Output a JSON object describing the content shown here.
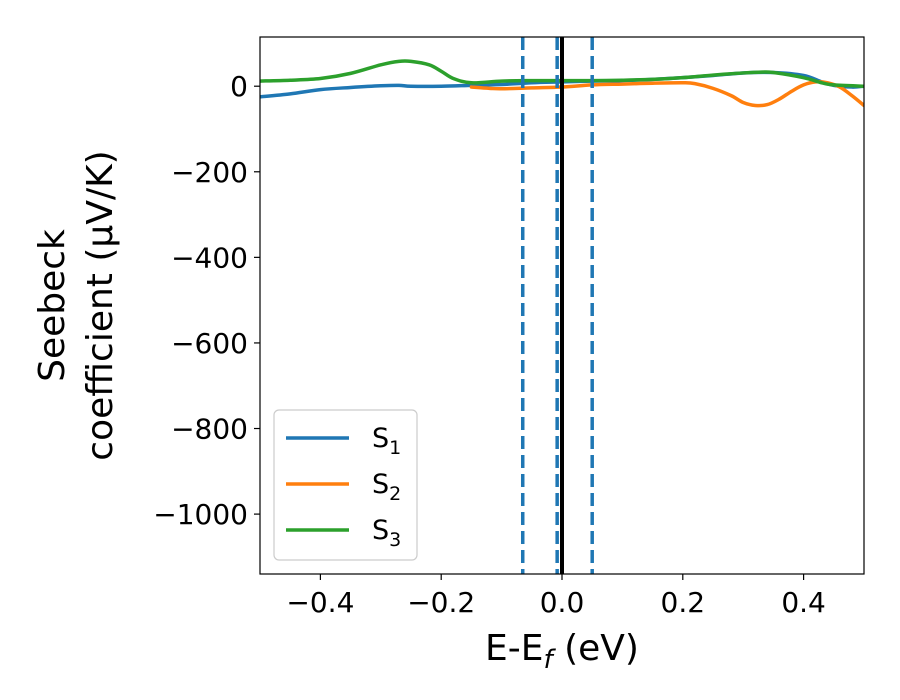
{
  "chart_data": {
    "type": "line",
    "xlabel_main": "E-E",
    "xlabel_sub": "f",
    "xlabel_unit": " (eV)",
    "ylabel_line1": "Seebeck",
    "ylabel_line2": "coefficient  (μV/K)",
    "xlim": [
      -0.5,
      0.5
    ],
    "ylim": [
      -1140,
      115
    ],
    "xticks": [
      -0.4,
      -0.2,
      0.0,
      0.2,
      0.4
    ],
    "xtick_labels": [
      "−0.4",
      "−0.2",
      "0.0",
      "0.2",
      "0.4"
    ],
    "yticks": [
      0,
      -200,
      -400,
      -600,
      -800,
      -1000
    ],
    "ytick_labels": [
      "0",
      "−200",
      "−400",
      "−600",
      "−800",
      "−1000"
    ],
    "grid": false,
    "legend_position": "lower-left",
    "vlines": [
      {
        "x": 0.0,
        "style": "solid",
        "color": "#000000"
      },
      {
        "x": -0.065,
        "style": "dashed",
        "color": "#1f77b4"
      },
      {
        "x": -0.008,
        "style": "dashed",
        "color": "#1f77b4"
      },
      {
        "x": 0.05,
        "style": "dashed",
        "color": "#1f77b4"
      }
    ],
    "series": [
      {
        "name": "S",
        "sub": "1",
        "color": "#1f77b4",
        "x": [
          -0.5,
          -0.45,
          -0.4,
          -0.35,
          -0.3,
          -0.27,
          -0.25,
          -0.2,
          -0.15,
          -0.1,
          -0.05,
          0.0,
          0.05,
          0.1,
          0.15,
          0.2,
          0.25,
          0.3,
          0.35,
          0.4,
          0.43,
          0.45,
          0.48,
          0.5
        ],
        "y": [
          -25,
          -18,
          -8,
          -3,
          1,
          2,
          0,
          0,
          2,
          4,
          8,
          10,
          12,
          13,
          16,
          20,
          25,
          31,
          32,
          25,
          10,
          2,
          -2,
          0
        ]
      },
      {
        "name": "S",
        "sub": "2",
        "color": "#ff7f0e",
        "x": [
          -0.15,
          -0.12,
          -0.1,
          -0.05,
          0.0,
          0.05,
          0.1,
          0.15,
          0.2,
          0.22,
          0.25,
          0.28,
          0.3,
          0.32,
          0.34,
          0.36,
          0.38,
          0.4,
          0.42,
          0.44,
          0.46,
          0.48,
          0.5
        ],
        "y": [
          -2,
          -5,
          -6,
          -4,
          -2,
          3,
          5,
          7,
          8,
          6,
          -5,
          -22,
          -38,
          -45,
          -43,
          -30,
          -12,
          3,
          10,
          8,
          -2,
          -22,
          -45
        ]
      },
      {
        "name": "S",
        "sub": "3",
        "color": "#2ca02c",
        "x": [
          -0.5,
          -0.45,
          -0.4,
          -0.35,
          -0.3,
          -0.27,
          -0.25,
          -0.22,
          -0.2,
          -0.18,
          -0.15,
          -0.1,
          -0.05,
          0.0,
          0.05,
          0.1,
          0.15,
          0.2,
          0.25,
          0.3,
          0.33,
          0.35,
          0.4,
          0.43,
          0.45,
          0.5
        ],
        "y": [
          12,
          14,
          18,
          30,
          50,
          58,
          58,
          50,
          35,
          18,
          8,
          12,
          13,
          13,
          13,
          14,
          16,
          20,
          26,
          31,
          33,
          32,
          20,
          8,
          3,
          0
        ]
      }
    ]
  }
}
